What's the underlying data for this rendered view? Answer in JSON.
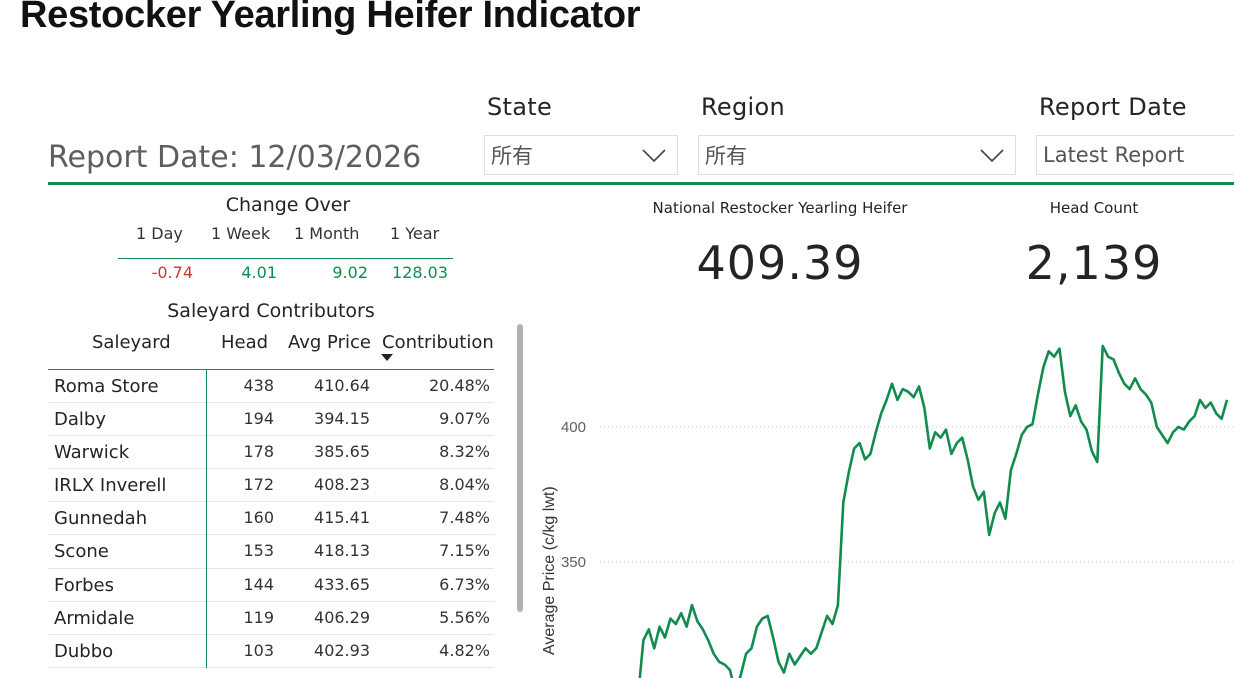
{
  "title": "Restocker Yearling Heifer Indicator",
  "report_date_label": "Report Date: 12/03/2026",
  "slicers": {
    "state": {
      "label": "State",
      "value": "所有"
    },
    "region": {
      "label": "Region",
      "value": "所有"
    },
    "report_date": {
      "label": "Report Date",
      "value": "Latest Report"
    }
  },
  "change_over": {
    "title": "Change Over",
    "periods": [
      "1 Day",
      "1 Week",
      "1 Month",
      "1 Year"
    ],
    "values": [
      "-0.74",
      "4.01",
      "9.02",
      "128.03"
    ],
    "colors": [
      "#d13438",
      "#118c4f",
      "#118c4f",
      "#118c4f"
    ]
  },
  "contributors": {
    "title": "Saleyard Contributors",
    "headers": [
      "Saleyard",
      "Head",
      "Avg Price",
      "Contribution"
    ],
    "rows": [
      [
        "Roma Store",
        "438",
        "410.64",
        "20.48%"
      ],
      [
        "Dalby",
        "194",
        "394.15",
        "9.07%"
      ],
      [
        "Warwick",
        "178",
        "385.65",
        "8.32%"
      ],
      [
        "IRLX Inverell",
        "172",
        "408.23",
        "8.04%"
      ],
      [
        "Gunnedah",
        "160",
        "415.41",
        "7.48%"
      ],
      [
        "Scone",
        "153",
        "418.13",
        "7.15%"
      ],
      [
        "Forbes",
        "144",
        "433.65",
        "6.73%"
      ],
      [
        "Armidale",
        "119",
        "406.29",
        "5.56%"
      ],
      [
        "Dubbo",
        "103",
        "402.93",
        "4.82%"
      ]
    ]
  },
  "kpis": {
    "national": {
      "title": "National Restocker Yearling Heifer",
      "value": "409.39"
    },
    "head_count": {
      "title": "Head Count",
      "value": "2,139"
    }
  },
  "colors": {
    "accent": "#118c4f",
    "negative": "#d13438"
  },
  "chart_data": {
    "type": "line",
    "ylabel": "Average Price (c/kg lwt)",
    "xlabel": "",
    "yticks": [
      350,
      400
    ],
    "ylim": [
      307,
      447
    ],
    "grid": true,
    "series": [
      {
        "color": "#118c4f",
        "values": [
          300,
          321,
          325,
          318,
          326,
          322,
          329,
          327,
          331,
          326,
          334,
          328,
          325,
          321,
          316,
          313,
          312,
          310,
          302,
          308,
          316,
          318,
          326,
          329,
          330,
          322,
          313,
          309,
          316,
          312,
          315,
          318,
          316,
          318,
          324,
          330,
          327,
          334,
          372,
          383,
          392,
          394,
          388,
          390,
          398,
          405,
          410,
          416,
          410,
          414,
          413,
          411,
          415,
          407,
          392,
          398,
          396,
          399,
          390,
          394,
          396,
          388,
          378,
          373,
          376,
          360,
          368,
          372,
          366,
          384,
          390,
          397,
          400,
          401,
          412,
          422,
          428,
          426,
          429,
          413,
          404,
          408,
          402,
          399,
          391,
          387,
          430,
          426,
          425,
          420,
          416,
          414,
          418,
          414,
          412,
          409,
          400,
          397,
          394,
          398,
          400,
          399,
          402,
          404,
          410,
          407,
          409,
          405,
          403,
          410
        ]
      }
    ]
  }
}
